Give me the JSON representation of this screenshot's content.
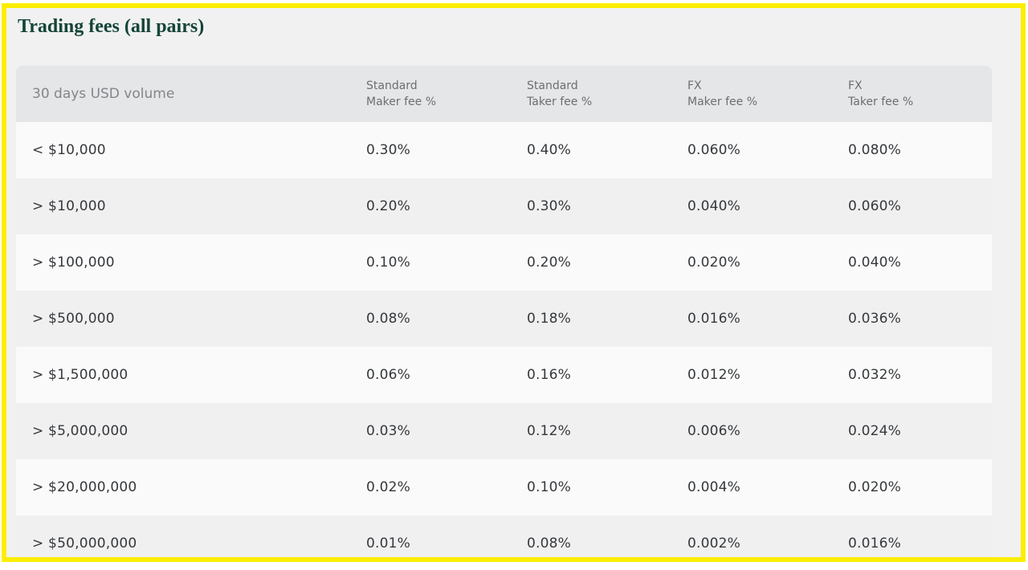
{
  "title": "Trading fees (all pairs)",
  "table": {
    "columns": [
      {
        "line1": "30 days USD volume",
        "line2": ""
      },
      {
        "line1": "Standard",
        "line2": "Maker fee %"
      },
      {
        "line1": "Standard",
        "line2": "Taker fee %"
      },
      {
        "line1": "FX",
        "line2": "Maker fee %"
      },
      {
        "line1": "FX",
        "line2": "Taker fee %"
      }
    ],
    "rows": [
      [
        "< $10,000",
        "0.30%",
        "0.40%",
        "0.060%",
        "0.080%"
      ],
      [
        "> $10,000",
        "0.20%",
        "0.30%",
        "0.040%",
        "0.060%"
      ],
      [
        "> $100,000",
        "0.10%",
        "0.20%",
        "0.020%",
        "0.040%"
      ],
      [
        "> $500,000",
        "0.08%",
        "0.18%",
        "0.016%",
        "0.036%"
      ],
      [
        "> $1,500,000",
        "0.06%",
        "0.16%",
        "0.012%",
        "0.032%"
      ],
      [
        "> $5,000,000",
        "0.03%",
        "0.12%",
        "0.006%",
        "0.024%"
      ],
      [
        "> $20,000,000",
        "0.02%",
        "0.10%",
        "0.004%",
        "0.020%"
      ],
      [
        "> $50,000,000",
        "0.01%",
        "0.08%",
        "0.002%",
        "0.016%"
      ]
    ]
  },
  "colors": {
    "highlight_border": "#fcee00",
    "title_green": "#154537",
    "header_bg": "#e5e6e7",
    "row_light": "#fafafa",
    "row_dark": "#f0f0f1",
    "header_text": "#6b6e72",
    "cell_text": "#35383b"
  }
}
